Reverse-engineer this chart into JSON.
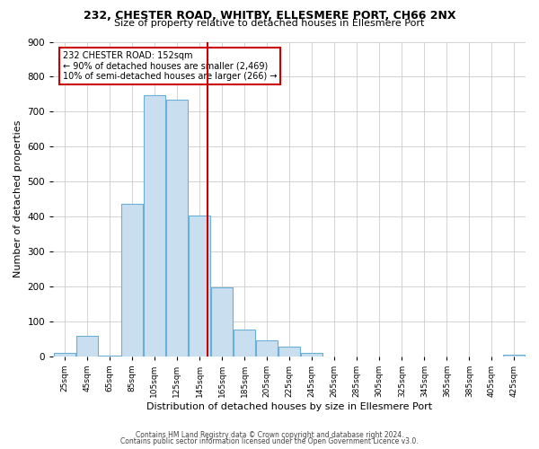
{
  "title1": "232, CHESTER ROAD, WHITBY, ELLESMERE PORT, CH66 2NX",
  "title2": "Size of property relative to detached houses in Ellesmere Port",
  "xlabel": "Distribution of detached houses by size in Ellesmere Port",
  "ylabel": "Number of detached properties",
  "footer1": "Contains HM Land Registry data © Crown copyright and database right 2024.",
  "footer2": "Contains public sector information licensed under the Open Government Licence v3.0.",
  "annotation_line1": "232 CHESTER ROAD: 152sqm",
  "annotation_line2": "← 90% of detached houses are smaller (2,469)",
  "annotation_line3": "10% of semi-detached houses are larger (266) →",
  "bar_color": "#c9dff0",
  "bar_edge_color": "#6aafd6",
  "vline_x": 152,
  "vline_color": "#cc0000",
  "annotation_box_edge": "#cc0000",
  "annotation_box_face": "#ffffff",
  "bin_centers": [
    25,
    45,
    65,
    85,
    105,
    125,
    145,
    165,
    185,
    205,
    225,
    245,
    265,
    285,
    305,
    325,
    345,
    365,
    385,
    405,
    425
  ],
  "bin_width": 20,
  "tick_labels": [
    "25sqm",
    "45sqm",
    "65sqm",
    "85sqm",
    "105sqm",
    "125sqm",
    "145sqm",
    "165sqm",
    "185sqm",
    "205sqm",
    "225sqm",
    "245sqm",
    "265sqm",
    "285sqm",
    "305sqm",
    "325sqm",
    "345sqm",
    "365sqm",
    "385sqm",
    "405sqm",
    "425sqm"
  ],
  "bar_heights": [
    10,
    58,
    2,
    435,
    747,
    735,
    403,
    197,
    75,
    45,
    28,
    8,
    0,
    0,
    0,
    0,
    0,
    0,
    0,
    0,
    5
  ],
  "ylim": [
    0,
    900
  ],
  "xlim": [
    15,
    435
  ],
  "yticks": [
    0,
    100,
    200,
    300,
    400,
    500,
    600,
    700,
    800,
    900
  ],
  "bg_color": "#ffffff",
  "grid_color": "#cccccc",
  "title1_fontsize": 9,
  "title2_fontsize": 8,
  "xlabel_fontsize": 8,
  "ylabel_fontsize": 8
}
